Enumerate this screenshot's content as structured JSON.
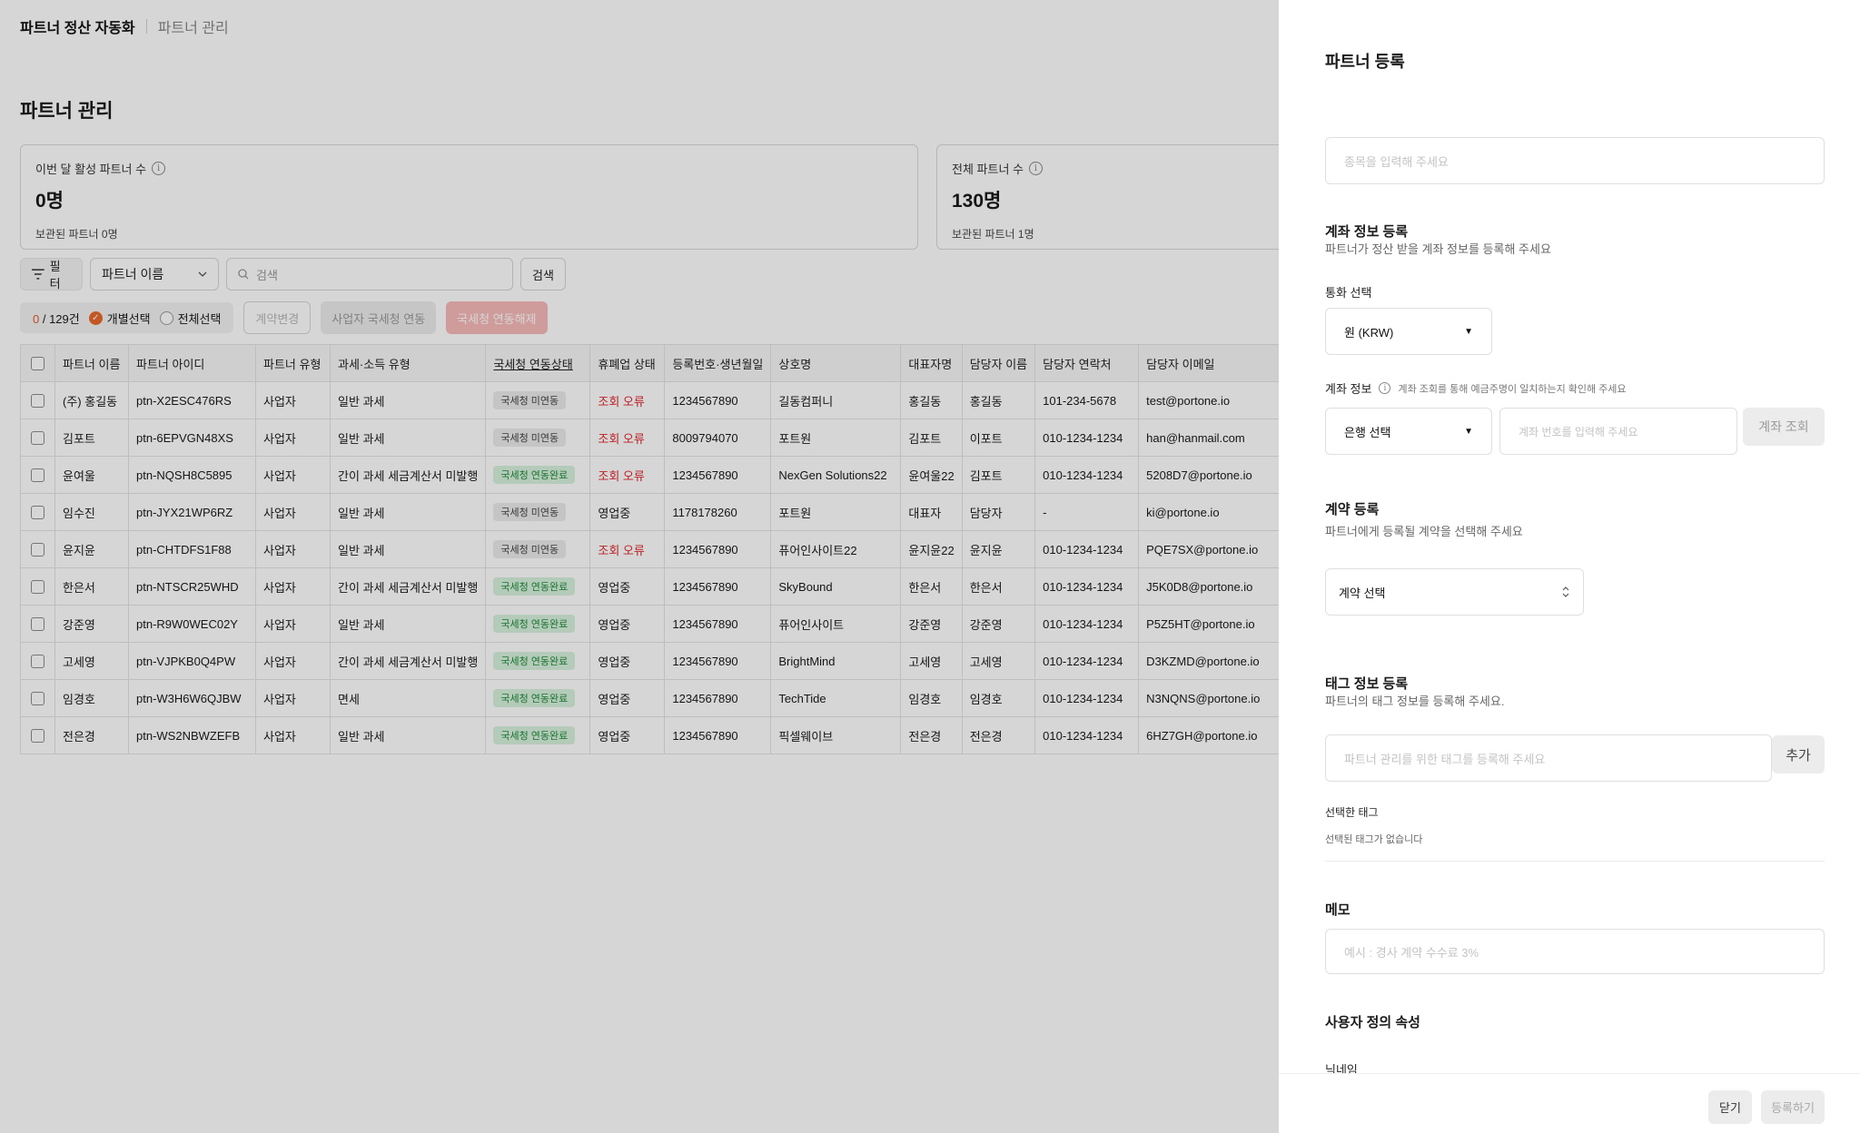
{
  "nav": {
    "brand": "파트너 정산 자동화",
    "crumb": "파트너 관리"
  },
  "page_title": "파트너 관리",
  "stats": [
    {
      "label": "이번 달 활성 파트너 수",
      "value": "0명",
      "sub": "보관된 파트너 0명"
    },
    {
      "label": "전체 파트너 수",
      "value": "130명",
      "sub": "보관된 파트너 1명"
    }
  ],
  "toolbar": {
    "filter": "필터",
    "select_value": "파트너 이름",
    "search_placeholder": "검색",
    "search_btn": "검색"
  },
  "actionbar": {
    "count_selected": "0",
    "count_total": " / 129건",
    "individual": "개별선택",
    "all": "전체선택",
    "contract_change": "계약변경",
    "link_tax": "사업자 국세청 연동",
    "unlink_tax": "국세청 연동해제"
  },
  "table": {
    "headers": [
      "파트너 이름",
      "파트너 아이디",
      "파트너 유형",
      "과세·소득 유형",
      "국세청 연동상태",
      "휴폐업 상태",
      "등록번호·생년월일",
      "상호명",
      "대표자명",
      "담당자 이름",
      "담당자 연락처",
      "담당자 이메일"
    ],
    "rows": [
      [
        "(주) 홍길동",
        "ptn-X2ESC476RS",
        "사업자",
        "일반 과세",
        "국세청 미연동",
        "조회 오류",
        "1234567890",
        "길동컴퍼니",
        "홍길동",
        "홍길동",
        "101-234-5678",
        "test@portone.io"
      ],
      [
        "김포트",
        "ptn-6EPVGN48XS",
        "사업자",
        "일반 과세",
        "국세청 미연동",
        "조회 오류",
        "8009794070",
        "포트원",
        "김포트",
        "이포트",
        "010-1234-1234",
        "han@hanmail.com"
      ],
      [
        "윤여울",
        "ptn-NQSH8C5895",
        "사업자",
        "간이 과세 세금계산서 미발행",
        "국세청 연동완료",
        "조회 오류",
        "1234567890",
        "NexGen Solutions22",
        "윤여울22",
        "김포트",
        "010-1234-1234",
        "5208D7@portone.io"
      ],
      [
        "임수진",
        "ptn-JYX21WP6RZ",
        "사업자",
        "일반 과세",
        "국세청 미연동",
        "영업중",
        "1178178260",
        "포트원",
        "대표자",
        "담당자",
        "-",
        "ki@portone.io"
      ],
      [
        "윤지윤",
        "ptn-CHTDFS1F88",
        "사업자",
        "일반 과세",
        "국세청 미연동",
        "조회 오류",
        "1234567890",
        "퓨어인사이트22",
        "윤지윤22",
        "윤지윤",
        "010-1234-1234",
        "PQE7SX@portone.io"
      ],
      [
        "한은서",
        "ptn-NTSCR25WHD",
        "사업자",
        "간이 과세 세금계산서 미발행",
        "국세청 연동완료",
        "영업중",
        "1234567890",
        "SkyBound",
        "한은서",
        "한은서",
        "010-1234-1234",
        "J5K0D8@portone.io"
      ],
      [
        "강준영",
        "ptn-R9W0WEC02Y",
        "사업자",
        "일반 과세",
        "국세청 연동완료",
        "영업중",
        "1234567890",
        "퓨어인사이트",
        "강준영",
        "강준영",
        "010-1234-1234",
        "P5Z5HT@portone.io"
      ],
      [
        "고세영",
        "ptn-VJPKB0Q4PW",
        "사업자",
        "간이 과세 세금계산서 미발행",
        "국세청 연동완료",
        "영업중",
        "1234567890",
        "BrightMind",
        "고세영",
        "고세영",
        "010-1234-1234",
        "D3KZMD@portone.io"
      ],
      [
        "임경호",
        "ptn-W3H6W6QJBW",
        "사업자",
        "면세",
        "국세청 연동완료",
        "영업중",
        "1234567890",
        "TechTide",
        "임경호",
        "임경호",
        "010-1234-1234",
        "N3NQNS@portone.io"
      ],
      [
        "전은경",
        "ptn-WS2NBWZEFB",
        "사업자",
        "일반 과세",
        "국세청 연동완료",
        "영업중",
        "1234567890",
        "픽셀웨이브",
        "전은경",
        "전은경",
        "010-1234-1234",
        "6HZ7GH@portone.io"
      ]
    ]
  },
  "drawer": {
    "title": "파트너 등록",
    "item_placeholder": "종목을 입력해 주세요",
    "account": {
      "title": "계좌 정보 등록",
      "sub": "파트너가 정산 받을 계좌 정보를 등록해 주세요",
      "currency_label": "통화 선택",
      "currency_value": "원 (KRW)",
      "info_label": "계좌 정보",
      "info_hint": "계좌 조회를 통해 예금주명이 일치하는지 확인해 주세요",
      "bank_value": "은행 선택",
      "account_placeholder": "계좌 번호를 입력해 주세요",
      "lookup_btn": "계좌 조회"
    },
    "contract": {
      "title": "계약 등록",
      "sub": "파트너에게 등록될 계약을 선택해 주세요",
      "select_value": "계약 선택"
    },
    "tag": {
      "title": "태그 정보 등록",
      "sub": "파트너의 태그 정보를 등록해 주세요.",
      "placeholder": "파트너 관리를 위한 태그를 등록해 주세요",
      "add_btn": "추가",
      "selected_label": "선택한 태그",
      "empty": "선택된 태그가 없습니다"
    },
    "memo": {
      "title": "메모",
      "placeholder": "예시 : 경사 계약 수수료 3%"
    },
    "custom": {
      "title": "사용자 정의 속성",
      "nickname_label": "닉네임"
    },
    "close_btn": "닫기",
    "submit_btn": "등록하기"
  }
}
